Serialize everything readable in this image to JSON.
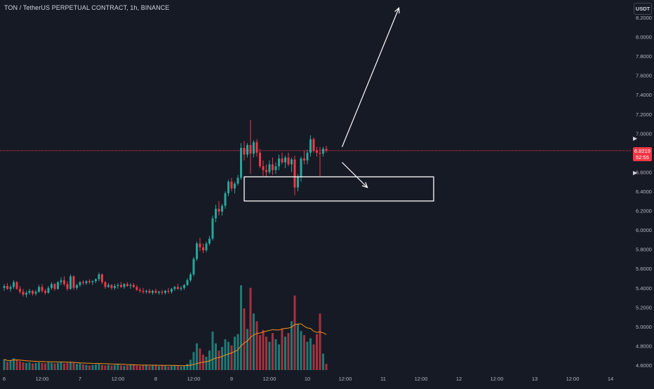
{
  "header": {
    "title": "TON / TetherUS PERPETUAL CONTRACT, 1h, BINANCE",
    "currency_button": "USDT"
  },
  "price_tag": {
    "price": "6.8219",
    "countdown": "52:55"
  },
  "colors": {
    "background": "#161a25",
    "up": "#26a69a",
    "down": "#f23645",
    "up_volume": "#1f7a73",
    "down_volume": "#a8303d",
    "ma": "#f7931a",
    "axis_text": "#b2b5be",
    "last_price_line": "#f23645",
    "annotation": "#ffffff"
  },
  "chart_data": {
    "type": "candlestick",
    "title": "TON / TetherUS PERPETUAL CONTRACT, 1h, BINANCE",
    "interval": "1h",
    "ylim": [
      4.55,
      8.3
    ],
    "y_ticks": [
      "8.2000",
      "8.0000",
      "7.8000",
      "7.6000",
      "7.4000",
      "7.2000",
      "7.0000",
      "6.8000",
      "6.6000",
      "6.4000",
      "6.2000",
      "6.0000",
      "5.8000",
      "5.6000",
      "5.4000",
      "5.2000",
      "5.0000",
      "4.8000",
      "4.6000"
    ],
    "x_ticks": [
      "6",
      "12:00",
      "7",
      "12:00",
      "8",
      "12:00",
      "9",
      "12:00",
      "10",
      "12:00",
      "11",
      "12:00",
      "12",
      "12:00",
      "13",
      "12:00",
      "14"
    ],
    "x_tick_bars": [
      0,
      12,
      24,
      36,
      48,
      60,
      72,
      84,
      96,
      108,
      120,
      132,
      144,
      156,
      168,
      180,
      192
    ],
    "grid": false,
    "last_price": 6.8219,
    "volume_ma_period": 20,
    "candles": [
      [
        5.4,
        5.44,
        5.37,
        5.42
      ],
      [
        5.42,
        5.45,
        5.38,
        5.39
      ],
      [
        5.39,
        5.43,
        5.36,
        5.41
      ],
      [
        5.41,
        5.48,
        5.39,
        5.46
      ],
      [
        5.46,
        5.47,
        5.38,
        5.39
      ],
      [
        5.39,
        5.42,
        5.34,
        5.36
      ],
      [
        5.36,
        5.39,
        5.31,
        5.33
      ],
      [
        5.33,
        5.37,
        5.3,
        5.35
      ],
      [
        5.35,
        5.39,
        5.33,
        5.37
      ],
      [
        5.37,
        5.38,
        5.32,
        5.34
      ],
      [
        5.34,
        5.38,
        5.32,
        5.36
      ],
      [
        5.36,
        5.43,
        5.35,
        5.41
      ],
      [
        5.41,
        5.44,
        5.35,
        5.37
      ],
      [
        5.37,
        5.39,
        5.33,
        5.35
      ],
      [
        5.35,
        5.42,
        5.34,
        5.4
      ],
      [
        5.4,
        5.46,
        5.38,
        5.44
      ],
      [
        5.44,
        5.45,
        5.37,
        5.39
      ],
      [
        5.39,
        5.47,
        5.38,
        5.46
      ],
      [
        5.46,
        5.51,
        5.43,
        5.48
      ],
      [
        5.48,
        5.52,
        5.42,
        5.44
      ],
      [
        5.44,
        5.47,
        5.37,
        5.39
      ],
      [
        5.39,
        5.54,
        5.38,
        5.52
      ],
      [
        5.52,
        5.53,
        5.38,
        5.4
      ],
      [
        5.4,
        5.44,
        5.38,
        5.43
      ],
      [
        5.43,
        5.47,
        5.41,
        5.46
      ],
      [
        5.46,
        5.48,
        5.43,
        5.45
      ],
      [
        5.45,
        5.48,
        5.43,
        5.47
      ],
      [
        5.47,
        5.49,
        5.44,
        5.46
      ],
      [
        5.46,
        5.48,
        5.43,
        5.47
      ],
      [
        5.47,
        5.5,
        5.45,
        5.49
      ],
      [
        5.49,
        5.56,
        5.47,
        5.54
      ],
      [
        5.54,
        5.55,
        5.44,
        5.46
      ],
      [
        5.46,
        5.47,
        5.39,
        5.41
      ],
      [
        5.41,
        5.45,
        5.4,
        5.43
      ],
      [
        5.43,
        5.44,
        5.38,
        5.4
      ],
      [
        5.4,
        5.44,
        5.38,
        5.42
      ],
      [
        5.42,
        5.45,
        5.39,
        5.43
      ],
      [
        5.43,
        5.46,
        5.4,
        5.41
      ],
      [
        5.41,
        5.45,
        5.39,
        5.44
      ],
      [
        5.44,
        5.46,
        5.41,
        5.42
      ],
      [
        5.42,
        5.45,
        5.39,
        5.43
      ],
      [
        5.43,
        5.45,
        5.4,
        5.41
      ],
      [
        5.41,
        5.43,
        5.37,
        5.38
      ],
      [
        5.38,
        5.4,
        5.35,
        5.37
      ],
      [
        5.37,
        5.4,
        5.34,
        5.36
      ],
      [
        5.36,
        5.38,
        5.34,
        5.37
      ],
      [
        5.37,
        5.39,
        5.34,
        5.35
      ],
      [
        5.35,
        5.38,
        5.33,
        5.37
      ],
      [
        5.37,
        5.39,
        5.34,
        5.35
      ],
      [
        5.35,
        5.37,
        5.33,
        5.36
      ],
      [
        5.36,
        5.38,
        5.33,
        5.35
      ],
      [
        5.35,
        5.38,
        5.33,
        5.37
      ],
      [
        5.37,
        5.4,
        5.34,
        5.36
      ],
      [
        5.36,
        5.4,
        5.34,
        5.39
      ],
      [
        5.39,
        5.42,
        5.37,
        5.41
      ],
      [
        5.41,
        5.44,
        5.38,
        5.39
      ],
      [
        5.39,
        5.42,
        5.37,
        5.4
      ],
      [
        5.4,
        5.44,
        5.38,
        5.43
      ],
      [
        5.43,
        5.5,
        5.42,
        5.48
      ],
      [
        5.48,
        5.56,
        5.46,
        5.54
      ],
      [
        5.54,
        5.72,
        5.52,
        5.7
      ],
      [
        5.7,
        5.88,
        5.68,
        5.86
      ],
      [
        5.86,
        5.92,
        5.78,
        5.82
      ],
      [
        5.82,
        5.86,
        5.76,
        5.79
      ],
      [
        5.79,
        5.88,
        5.77,
        5.86
      ],
      [
        5.86,
        5.94,
        5.84,
        5.91
      ],
      [
        5.91,
        6.15,
        5.89,
        6.12
      ],
      [
        6.12,
        6.26,
        6.08,
        6.22
      ],
      [
        6.22,
        6.3,
        6.15,
        6.19
      ],
      [
        6.19,
        6.27,
        6.15,
        6.25
      ],
      [
        6.25,
        6.4,
        6.22,
        6.38
      ],
      [
        6.38,
        6.52,
        6.35,
        6.5
      ],
      [
        6.5,
        6.54,
        6.4,
        6.43
      ],
      [
        6.43,
        6.5,
        6.38,
        6.48
      ],
      [
        6.48,
        6.57,
        6.46,
        6.54
      ],
      [
        6.54,
        6.9,
        6.52,
        6.85
      ],
      [
        6.85,
        6.92,
        6.72,
        6.78
      ],
      [
        6.78,
        6.9,
        6.75,
        6.88
      ],
      [
        6.88,
        7.14,
        6.58,
        6.79
      ],
      [
        6.79,
        6.93,
        6.75,
        6.91
      ],
      [
        6.91,
        6.94,
        6.76,
        6.8
      ],
      [
        6.8,
        6.84,
        6.64,
        6.66
      ],
      [
        6.66,
        6.72,
        6.56,
        6.62
      ],
      [
        6.62,
        6.68,
        6.55,
        6.6
      ],
      [
        6.6,
        6.72,
        6.58,
        6.68
      ],
      [
        6.68,
        6.75,
        6.57,
        6.62
      ],
      [
        6.62,
        6.7,
        6.58,
        6.66
      ],
      [
        6.66,
        6.78,
        6.62,
        6.74
      ],
      [
        6.74,
        6.8,
        6.68,
        6.7
      ],
      [
        6.7,
        6.77,
        6.64,
        6.75
      ],
      [
        6.75,
        6.8,
        6.66,
        6.68
      ],
      [
        6.68,
        6.75,
        6.6,
        6.73
      ],
      [
        6.73,
        6.77,
        6.36,
        6.44
      ],
      [
        6.44,
        6.58,
        6.4,
        6.55
      ],
      [
        6.55,
        6.76,
        6.5,
        6.74
      ],
      [
        6.74,
        6.82,
        6.68,
        6.72
      ],
      [
        6.72,
        6.83,
        6.68,
        6.8
      ],
      [
        6.8,
        6.98,
        6.76,
        6.94
      ],
      [
        6.94,
        6.96,
        6.8,
        6.82
      ],
      [
        6.82,
        6.86,
        6.76,
        6.8
      ],
      [
        6.8,
        6.86,
        6.56,
        6.79
      ],
      [
        6.79,
        6.86,
        6.76,
        6.84
      ],
      [
        6.84,
        6.87,
        6.8,
        6.8219
      ]
    ],
    "volume_max": 18000,
    "volumes": [
      2100,
      1600,
      1900,
      2300,
      2000,
      1700,
      1500,
      1400,
      1500,
      1300,
      1400,
      1500,
      1400,
      1300,
      1500,
      1400,
      1300,
      1400,
      1500,
      1300,
      1400,
      1500,
      1400,
      1200,
      1300,
      1100,
      1000,
      900,
      1000,
      1100,
      1200,
      1000,
      900,
      1000,
      900,
      1000,
      1100,
      900,
      800,
      900,
      1000,
      1100,
      900,
      800,
      900,
      1000,
      800,
      900,
      1000,
      800,
      900,
      800,
      700,
      800,
      900,
      800,
      700,
      800,
      1200,
      2000,
      3500,
      5200,
      4200,
      3000,
      2600,
      3800,
      7500,
      5200,
      3800,
      4500,
      6000,
      5500,
      4800,
      6500,
      7000,
      16500,
      12000,
      8000,
      16000,
      11000,
      9500,
      6800,
      7800,
      6500,
      5500,
      7200,
      6000,
      5000,
      8000,
      6500,
      7200,
      9500,
      14500,
      9000,
      7600,
      6800,
      5500,
      6200,
      5000,
      7000,
      11000,
      3200,
      1200
    ]
  },
  "annotations": {
    "zone": {
      "price_top": 6.55,
      "price_bottom": 6.3,
      "bar_start": 76,
      "bar_end": 136
    },
    "arrow_up": {
      "from_bar": 107,
      "from_price": 6.86,
      "to_bar": 125,
      "to_price": 8.3
    },
    "arrow_down": {
      "from_bar": 107,
      "from_price": 6.7,
      "to_bar": 115,
      "to_price": 6.44
    }
  }
}
